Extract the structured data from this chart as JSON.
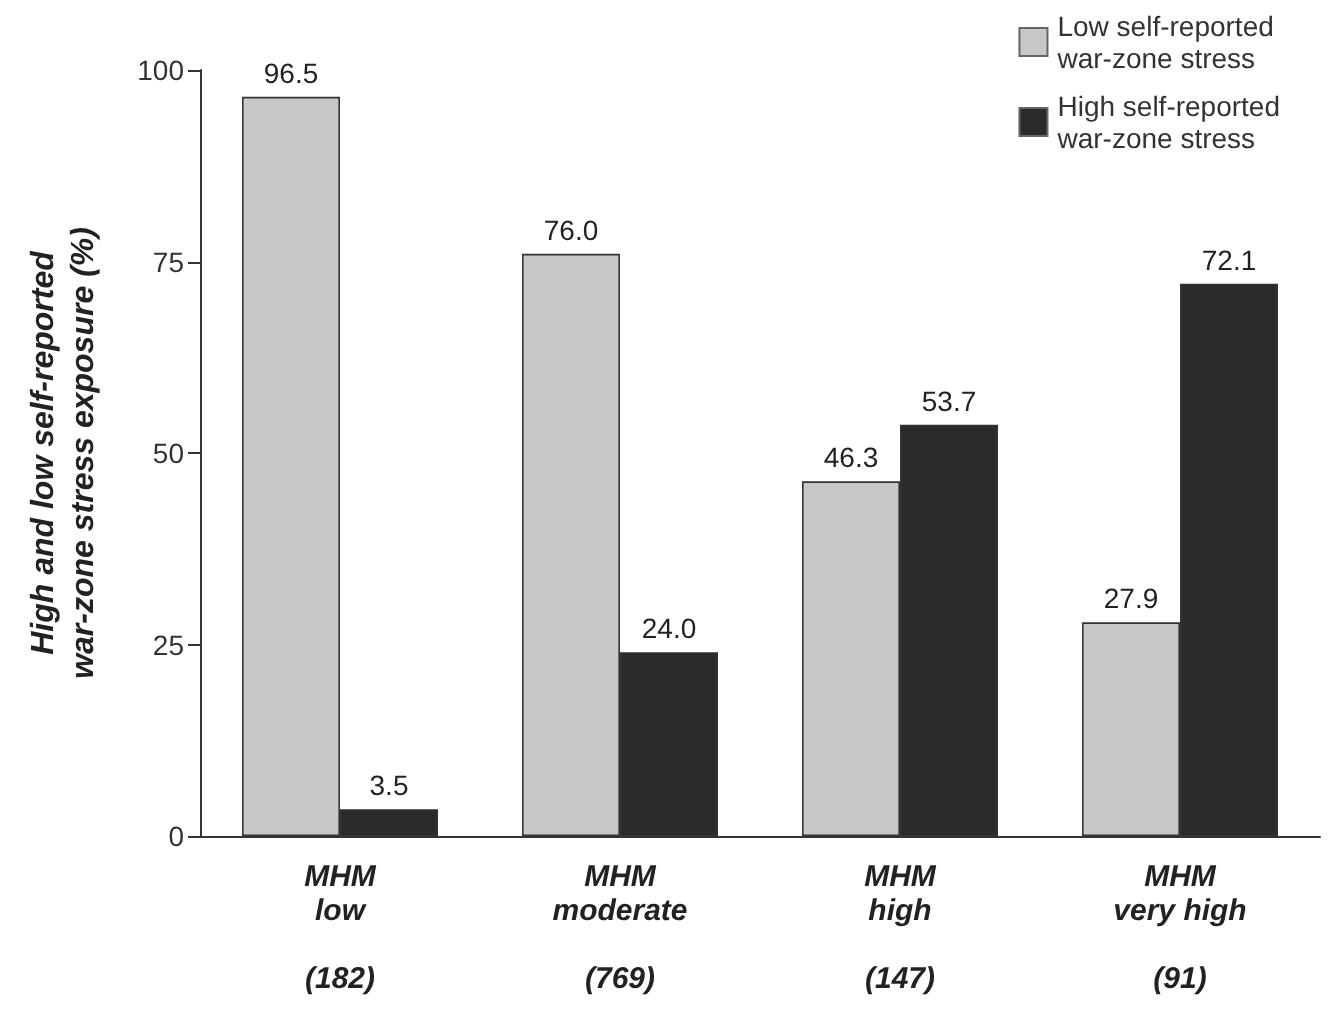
{
  "chart_data": {
    "type": "bar",
    "ylabel": "High and low self-reported\nwar-zone stress exposure (%)",
    "categories": [
      "MHM\nlow\n\n(182)",
      "MHM\nmoderate\n\n(769)",
      "MHM\nhigh\n\n(147)",
      "MHM\nvery high\n\n(91)"
    ],
    "series": [
      {
        "name": "Low self-reported\nwar-zone stress",
        "color": "#c8c8c8",
        "values": [
          96.5,
          76.0,
          46.3,
          27.9
        ],
        "value_labels": [
          "96.5",
          "76.0",
          "46.3",
          "27.9"
        ]
      },
      {
        "name": "High self-reported\nwar-zone stress",
        "color": "#2b2b2b",
        "values": [
          3.5,
          24.0,
          53.7,
          72.1
        ],
        "value_labels": [
          "3.5",
          "24.0",
          "53.7",
          "72.1"
        ]
      }
    ],
    "ylim": [
      0,
      100
    ],
    "yticks": [
      0,
      25,
      50,
      75,
      100
    ],
    "grid": false,
    "legend": "top right"
  }
}
